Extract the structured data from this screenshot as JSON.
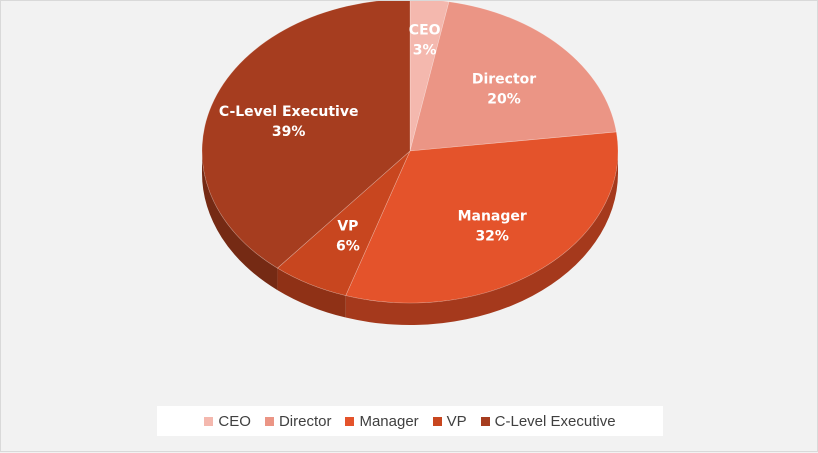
{
  "chart_data": {
    "type": "pie",
    "style": "3d",
    "title": "",
    "categories": [
      "CEO",
      "Director",
      "Manager",
      "VP",
      "C-Level Executive"
    ],
    "values": [
      3,
      20,
      32,
      6,
      39
    ],
    "value_labels": [
      "3%",
      "20%",
      "32%",
      "6%",
      "39%"
    ],
    "colors": [
      "#f4b8ae",
      "#eb9585",
      "#e4532b",
      "#c8461f",
      "#a63d1f"
    ],
    "side_colors": [
      "#c9877e",
      "#c47060",
      "#a5391c",
      "#8f3116",
      "#752a14"
    ],
    "legend_position": "bottom"
  }
}
